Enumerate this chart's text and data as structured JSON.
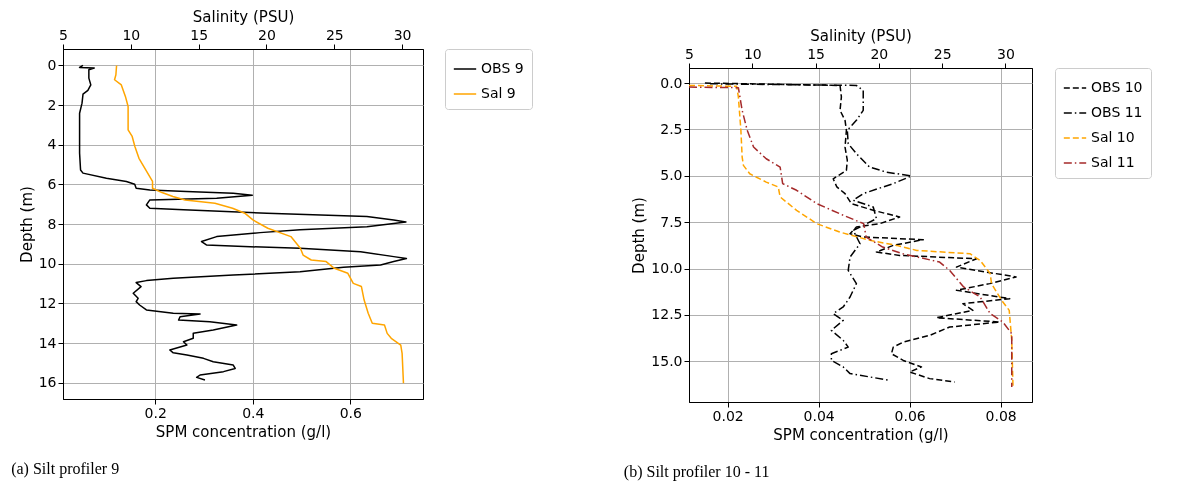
{
  "chart_data": [
    {
      "type": "line",
      "title": "(a) Silt profiler 9",
      "xlabel": "SPM concentration (g/l)",
      "x2label": "Salinity (PSU)",
      "ylabel": "Depth (m)",
      "xlim": [
        0.011,
        0.749
      ],
      "xticks": [
        0.2,
        0.4,
        0.6
      ],
      "x2lim": [
        5,
        31.54
      ],
      "x2ticks": [
        5,
        10,
        15,
        20,
        25,
        30
      ],
      "ylim": [
        16.82,
        -0.83
      ],
      "yticks": [
        0,
        2,
        4,
        6,
        8,
        10,
        12,
        14,
        16
      ],
      "grid": true,
      "legend": "right",
      "series": [
        {
          "name": "OBS 9",
          "color": "#000000",
          "line_style": "solid",
          "x": [
            0.052,
            0.045,
            0.075,
            0.064,
            0.064,
            0.068,
            0.062,
            0.052,
            0.05,
            0.045,
            0.045,
            0.045,
            0.047,
            0.052,
            0.1,
            0.141,
            0.158,
            0.161,
            0.189,
            0.264,
            0.36,
            0.399,
            0.326,
            0.189,
            0.182,
            0.189,
            0.258,
            0.429,
            0.634,
            0.689,
            0.714,
            0.634,
            0.497,
            0.415,
            0.326,
            0.295,
            0.305,
            0.395,
            0.497,
            0.621,
            0.689,
            0.715,
            0.689,
            0.662,
            0.586,
            0.497,
            0.36,
            0.237,
            0.182,
            0.161,
            0.171,
            0.155,
            0.165,
            0.161,
            0.168,
            0.182,
            0.237,
            0.292,
            0.251,
            0.248,
            0.312,
            0.367,
            0.319,
            0.278,
            0.278,
            0.258,
            0.265,
            0.23,
            0.237,
            0.265,
            0.299,
            0.319,
            0.36,
            0.364,
            0.34,
            0.292,
            0.285,
            0.302
          ],
          "values": [
            0.0,
            0.1,
            0.13,
            0.22,
            0.64,
            0.98,
            1.26,
            1.45,
            1.9,
            2.41,
            3.42,
            4.42,
            5.27,
            5.43,
            5.69,
            5.85,
            5.99,
            6.19,
            6.28,
            6.36,
            6.44,
            6.54,
            6.7,
            6.78,
            7.03,
            7.2,
            7.28,
            7.45,
            7.62,
            7.79,
            7.89,
            8.13,
            8.29,
            8.43,
            8.63,
            8.88,
            9.05,
            9.14,
            9.22,
            9.39,
            9.64,
            9.74,
            9.89,
            10.06,
            10.18,
            10.4,
            10.57,
            10.73,
            10.85,
            10.95,
            11.15,
            11.49,
            11.74,
            11.91,
            12.08,
            12.33,
            12.5,
            12.53,
            12.67,
            12.84,
            12.92,
            13.09,
            13.34,
            13.51,
            13.76,
            13.93,
            14.1,
            14.35,
            14.49,
            14.6,
            14.77,
            14.94,
            15.11,
            15.28,
            15.44,
            15.61,
            15.73,
            15.86
          ]
        },
        {
          "name": "Sal 9",
          "color": "#ffa500",
          "line_style": "solid",
          "axis": "x2",
          "x": [
            8.95,
            8.9,
            8.8,
            9.3,
            9.6,
            9.8,
            9.8,
            10.1,
            10.3,
            10.6,
            11.1,
            11.6,
            11.6,
            12.3,
            13.1,
            14.0,
            16.2,
            17.5,
            18.4,
            19.0,
            20.1,
            21.8,
            22.5,
            22.7,
            23.3,
            24.4,
            25.0,
            26.0,
            26.4,
            27.0,
            27.2,
            27.5,
            27.8,
            28.7,
            28.9,
            29.2,
            29.9,
            30.0,
            30.1
          ],
          "values": [
            0.0,
            0.47,
            0.72,
            0.98,
            1.56,
            2.07,
            3.25,
            3.58,
            4.09,
            4.68,
            5.27,
            5.85,
            6.19,
            6.41,
            6.61,
            6.78,
            6.95,
            7.2,
            7.45,
            7.79,
            8.21,
            8.63,
            9.22,
            9.56,
            9.81,
            9.89,
            10.23,
            10.48,
            10.99,
            11.15,
            11.83,
            12.5,
            13.0,
            13.09,
            13.51,
            13.76,
            14.1,
            14.52,
            16.03
          ]
        }
      ]
    },
    {
      "type": "line",
      "title": "(b) Silt profiler 10 - 11",
      "xlabel": "SPM concentration (g/l)",
      "x2label": "Salinity (PSU)",
      "ylabel": "Depth (m)",
      "xlim": [
        0.0115,
        0.0869
      ],
      "xticks": [
        0.02,
        0.04,
        0.06,
        0.08
      ],
      "x2lim": [
        5,
        32.1
      ],
      "x2ticks": [
        5,
        10,
        15,
        20,
        25,
        30
      ],
      "ylim": [
        17.19,
        -0.81
      ],
      "yticks": [
        {
          "value": 0,
          "label": "0.0"
        },
        {
          "value": 2.5,
          "label": "2.5"
        },
        {
          "value": 5,
          "label": "5.0"
        },
        {
          "value": 7.5,
          "label": "7.5"
        },
        {
          "value": 10,
          "label": "10.0"
        },
        {
          "value": 12.5,
          "label": "12.5"
        },
        {
          "value": 15,
          "label": "15.0"
        }
      ],
      "grid": true,
      "legend": "right",
      "series": [
        {
          "name": "OBS 10",
          "color": "#000000",
          "line_style": "dashed",
          "x": [
            0.015,
            0.0447,
            0.045,
            0.0447,
            0.0458,
            0.0461,
            0.0458,
            0.0463,
            0.0461,
            0.0432,
            0.044,
            0.0458,
            0.0472,
            0.052,
            0.0578,
            0.0534,
            0.0483,
            0.0469,
            0.0498,
            0.063,
            0.0564,
            0.0527,
            0.0578,
            0.0747,
            0.0703,
            0.0769,
            0.0834,
            0.0776,
            0.0703,
            0.082,
            0.0717,
            0.0739,
            0.0659,
            0.0798,
            0.0688,
            0.0644,
            0.0586,
            0.0564,
            0.056,
            0.0586,
            0.0626,
            0.06,
            0.0644,
            0.0699
          ],
          "values": [
            0.0,
            0.13,
            0.75,
            1.47,
            2.01,
            2.55,
            3.45,
            4.17,
            4.71,
            5.16,
            5.6,
            5.96,
            6.5,
            6.86,
            7.22,
            7.58,
            7.76,
            8.12,
            8.3,
            8.44,
            8.75,
            9.11,
            9.29,
            9.47,
            9.92,
            10.19,
            10.45,
            10.81,
            11.17,
            11.62,
            11.89,
            12.25,
            12.65,
            12.88,
            13.15,
            13.6,
            13.96,
            14.23,
            14.59,
            14.95,
            15.3,
            15.57,
            15.93,
            16.11
          ]
        },
        {
          "name": "OBS 11",
          "color": "#000000",
          "line_style": "dashdot",
          "x": [
            0.0161,
            0.0483,
            0.0498,
            0.0498,
            0.0483,
            0.0463,
            0.0465,
            0.0483,
            0.0512,
            0.0549,
            0.0604,
            0.0564,
            0.0498,
            0.0476,
            0.052,
            0.0527,
            0.0498,
            0.0476,
            0.0491,
            0.0469,
            0.0465,
            0.0483,
            0.0469,
            0.0454,
            0.0432,
            0.0454,
            0.0428,
            0.0454,
            0.0465,
            0.0428,
            0.0428,
            0.0454,
            0.0469,
            0.0556
          ],
          "values": [
            0.04,
            0.13,
            0.4,
            1.47,
            2.01,
            2.55,
            3.27,
            3.81,
            4.53,
            4.8,
            5.01,
            5.42,
            5.96,
            6.32,
            6.68,
            7.31,
            7.67,
            7.94,
            8.66,
            9.38,
            10.1,
            10.81,
            11.53,
            12.07,
            12.43,
            12.79,
            13.33,
            13.87,
            14.23,
            14.59,
            14.95,
            15.3,
            15.66,
            16.02
          ]
        },
        {
          "name": "Sal 10",
          "color": "#ffa500",
          "line_style": "dashed",
          "axis": "x2",
          "x": [
            5.0,
            8.76,
            8.9,
            9.1,
            9.2,
            9.3,
            9.8,
            11.1,
            12.05,
            12.2,
            13.5,
            15.1,
            16.9,
            19.3,
            21.4,
            23.0,
            27.2,
            28.0,
            28.8,
            28.9,
            29.7,
            30.3,
            30.5,
            30.6
          ],
          "values": [
            0.13,
            0.18,
            0.75,
            2.55,
            3.99,
            4.44,
            4.89,
            5.34,
            5.6,
            6.14,
            6.86,
            7.58,
            8.03,
            8.48,
            8.75,
            9.02,
            9.2,
            9.56,
            10.27,
            10.81,
            11.71,
            12.25,
            13.87,
            16.38
          ]
        },
        {
          "name": "Sal 11",
          "color": "#a52a2a",
          "line_style": "dashdot",
          "axis": "x2",
          "x": [
            5.0,
            8.9,
            9.2,
            9.6,
            10.1,
            11.1,
            12.2,
            12.4,
            13.5,
            15.1,
            17.2,
            18.8,
            19.0,
            20.3,
            21.9,
            24.8,
            25.6,
            26.7,
            28.0,
            28.8,
            29.8,
            30.5,
            30.5
          ],
          "values": [
            0.22,
            0.25,
            1.47,
            2.55,
            3.45,
            4.08,
            4.53,
            5.42,
            5.78,
            6.5,
            7.13,
            7.58,
            8.3,
            8.84,
            9.2,
            9.65,
            10.1,
            10.99,
            11.53,
            12.43,
            12.88,
            13.51,
            16.38
          ]
        }
      ]
    }
  ]
}
